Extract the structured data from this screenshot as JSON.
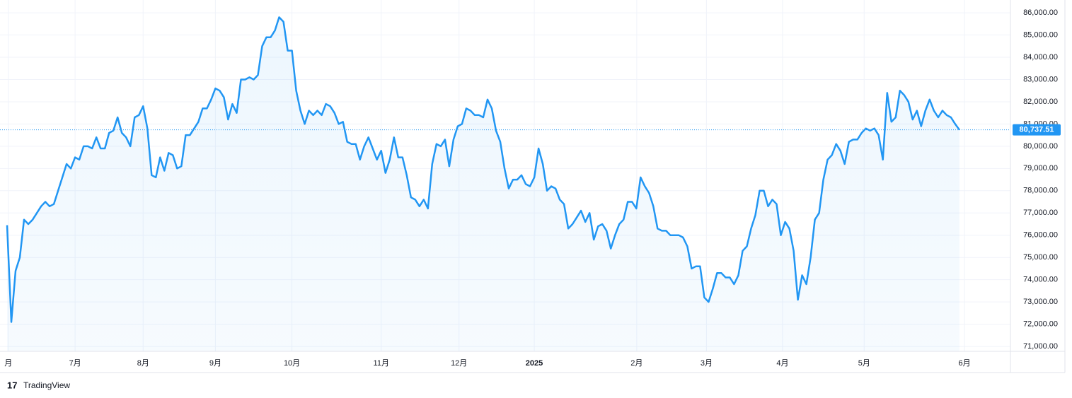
{
  "chart_data": {
    "type": "area",
    "values": [
      76450,
      72100,
      74400,
      75000,
      76700,
      76500,
      76700,
      77000,
      77300,
      77500,
      77300,
      77400,
      78000,
      78600,
      79200,
      79000,
      79500,
      79400,
      80000,
      80000,
      79900,
      80400,
      79900,
      79900,
      80600,
      80700,
      81300,
      80600,
      80400,
      80000,
      81300,
      81400,
      81800,
      80800,
      78700,
      78600,
      79500,
      78900,
      79700,
      79600,
      79000,
      79100,
      80500,
      80500,
      80800,
      81100,
      81700,
      81700,
      82100,
      82600,
      82500,
      82200,
      81200,
      81900,
      81500,
      83000,
      83000,
      83100,
      83000,
      83200,
      84500,
      84900,
      84900,
      85200,
      85800,
      85600,
      84300,
      84300,
      82500,
      81600,
      81000,
      81600,
      81400,
      81600,
      81400,
      81900,
      81800,
      81500,
      81000,
      81100,
      80200,
      80100,
      80100,
      79400,
      80000,
      80400,
      79900,
      79400,
      79800,
      78800,
      79400,
      80400,
      79500,
      79500,
      78700,
      77700,
      77600,
      77300,
      77600,
      77200,
      79200,
      80100,
      80000,
      80300,
      79100,
      80300,
      80900,
      81000,
      81700,
      81600,
      81400,
      81400,
      81300,
      82100,
      81700,
      80700,
      80200,
      79000,
      78100,
      78500,
      78500,
      78700,
      78300,
      78200,
      78600,
      79900,
      79200,
      78000,
      78200,
      78100,
      77600,
      77400,
      76300,
      76500,
      76800,
      77100,
      76600,
      77000,
      75800,
      76400,
      76500,
      76200,
      75400,
      76000,
      76500,
      76700,
      77500,
      77500,
      77200,
      78600,
      78200,
      77900,
      77300,
      76300,
      76200,
      76200,
      76000,
      76000,
      76000,
      75900,
      75500,
      74500,
      74600,
      74600,
      73200,
      73000,
      73600,
      74300,
      74300,
      74100,
      74100,
      73800,
      74200,
      75300,
      75500,
      76300,
      76900,
      78000,
      78000,
      77300,
      77600,
      77400,
      76000,
      76600,
      76300,
      75300,
      73100,
      74200,
      73800,
      75000,
      76700,
      77000,
      78500,
      79400,
      79600,
      80100,
      79800,
      79200,
      80200,
      80300,
      80300,
      80600,
      80800,
      80700,
      80800,
      80500,
      79400,
      82400,
      81100,
      81300,
      82500,
      82300,
      82000,
      81200,
      81600,
      80900,
      81600,
      82100,
      81600,
      81300,
      81600,
      81400,
      81300,
      81000,
      80737.51
    ],
    "last_value_label": "80,737.51",
    "color": "#2196f3",
    "xlim": [
      0,
      236
    ],
    "xticks": [
      {
        "value": 0.3,
        "label": "月"
      },
      {
        "value": 16,
        "label": "7月"
      },
      {
        "value": 32,
        "label": "8月"
      },
      {
        "value": 49,
        "label": "9月"
      },
      {
        "value": 67,
        "label": "10月"
      },
      {
        "value": 88,
        "label": "11月"
      },
      {
        "value": 106.3,
        "label": "12月"
      },
      {
        "value": 124,
        "label": "2025"
      },
      {
        "value": 148.1,
        "label": "2月"
      },
      {
        "value": 164.5,
        "label": "3月"
      },
      {
        "value": 182.4,
        "label": "4月"
      },
      {
        "value": 201.6,
        "label": "5月"
      },
      {
        "value": 225.2,
        "label": "6月"
      }
    ],
    "ylim": [
      70780,
      86320
    ],
    "yticks": [
      {
        "value": 71000,
        "label": "71,000.00"
      },
      {
        "value": 72000,
        "label": "72,000.00"
      },
      {
        "value": 73000,
        "label": "73,000.00"
      },
      {
        "value": 74000,
        "label": "74,000.00"
      },
      {
        "value": 75000,
        "label": "75,000.00"
      },
      {
        "value": 76000,
        "label": "76,000.00"
      },
      {
        "value": 77000,
        "label": "77,000.00"
      },
      {
        "value": 78000,
        "label": "78,000.00"
      },
      {
        "value": 79000,
        "label": "79,000.00"
      },
      {
        "value": 80000,
        "label": "80,000.00"
      },
      {
        "value": 81000,
        "label": "81,000.00"
      },
      {
        "value": 82000,
        "label": "82,000.00"
      },
      {
        "value": 83000,
        "label": "83,000.00"
      },
      {
        "value": 84000,
        "label": "84,000.00"
      },
      {
        "value": 85000,
        "label": "85,000.00"
      },
      {
        "value": 86000,
        "label": "86,000.00"
      }
    ],
    "grid": true,
    "brand": "TradingView"
  }
}
